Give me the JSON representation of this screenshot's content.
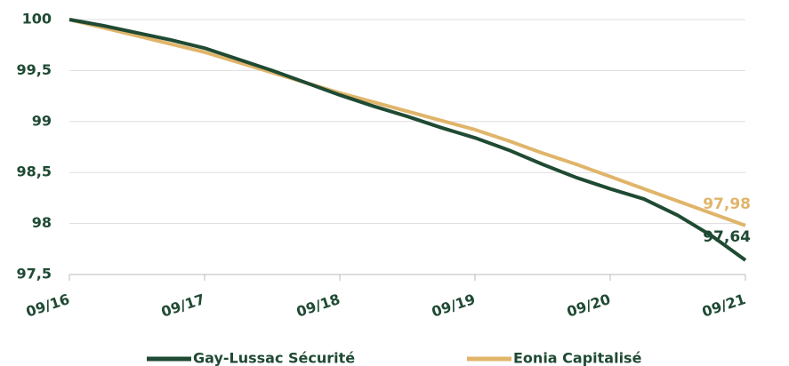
{
  "chart_data": {
    "type": "line",
    "categories": [
      "09/16",
      null,
      null,
      null,
      "09/17",
      null,
      null,
      null,
      "09/18",
      null,
      null,
      null,
      "09/19",
      null,
      null,
      null,
      "09/20",
      null,
      null,
      null,
      "09/21"
    ],
    "ylim": [
      97.5,
      100
    ],
    "yticks": [
      {
        "value": 97.5,
        "label": "97,5"
      },
      98,
      {
        "value": 98.5,
        "label": "98,5"
      },
      99,
      {
        "value": 99.5,
        "label": "99,5"
      },
      100
    ],
    "grid": true,
    "legend": "bottom",
    "series": [
      {
        "name": "Gay-Lussac Sécurité",
        "color": "#1f4a33",
        "values": [
          100,
          99.94,
          99.87,
          99.8,
          99.72,
          99.61,
          99.5,
          99.38,
          99.26,
          99.15,
          99.05,
          98.94,
          98.84,
          98.72,
          98.58,
          98.45,
          98.34,
          98.24,
          98.08,
          97.88,
          97.64
        ],
        "value_labels": [
          null,
          null,
          null,
          null,
          null,
          null,
          null,
          null,
          null,
          null,
          null,
          null,
          null,
          null,
          null,
          null,
          null,
          null,
          null,
          null,
          "97,64"
        ]
      },
      {
        "name": "Eonia Capitalisé",
        "color": "#e0b56a",
        "values": [
          100,
          99.92,
          99.84,
          99.76,
          99.68,
          99.58,
          99.48,
          99.38,
          99.28,
          99.19,
          99.1,
          99.01,
          98.92,
          98.81,
          98.69,
          98.58,
          98.46,
          98.34,
          98.22,
          98.1,
          97.98
        ],
        "value_labels": [
          null,
          null,
          null,
          null,
          null,
          null,
          null,
          null,
          null,
          null,
          null,
          null,
          null,
          null,
          null,
          null,
          null,
          null,
          null,
          null,
          "97,98"
        ]
      }
    ]
  }
}
